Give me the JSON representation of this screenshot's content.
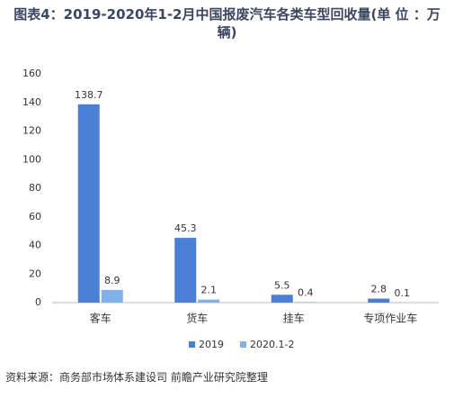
{
  "chart_data": {
    "type": "bar",
    "title": "图表4：2019-2020年1-2月中国报废汽车各类车型回收量(单 位 ：万辆)",
    "categories": [
      "客车",
      "货车",
      "挂车",
      "专项作业车"
    ],
    "series": [
      {
        "name": "2019",
        "color": "#4a7fd6",
        "values": [
          138.7,
          45.3,
          5.5,
          2.8
        ]
      },
      {
        "name": "2020.1-2",
        "color": "#7fb1ea",
        "values": [
          8.9,
          2.1,
          0.4,
          0.1
        ]
      }
    ],
    "ylim": [
      0,
      160
    ],
    "yticks": [
      0,
      20,
      40,
      60,
      80,
      100,
      120,
      140,
      160
    ],
    "grid": false,
    "legend": "bottom",
    "source": "资料来源：商务部市场体系建设司 前瞻产业研究院整理"
  }
}
